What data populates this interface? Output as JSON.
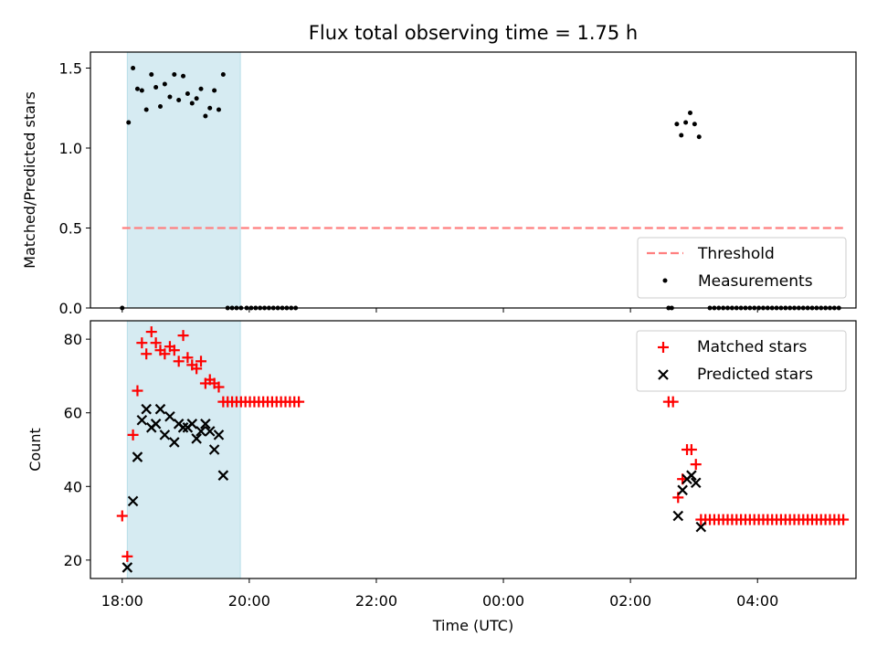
{
  "chart_data": [
    {
      "type": "scatter",
      "title": "Flux total observing time = 1.75 h",
      "xlabel": "",
      "ylabel": "Matched/Predicted stars",
      "xlim": [
        -0.5,
        11.55
      ],
      "ylim": [
        0,
        1.6
      ],
      "xticks": [
        0,
        2,
        4,
        6,
        8,
        10
      ],
      "yticks": [
        0.0,
        0.5,
        1.0,
        1.5
      ],
      "ytick_labels": [
        "0.0",
        "0.5",
        "1.0",
        "1.5"
      ],
      "shaded_interval": [
        0.08,
        1.86
      ],
      "threshold": {
        "name": "Threshold",
        "y": 0.5,
        "x": [
          0.0,
          11.35
        ],
        "color": "#ff7f7f"
      },
      "series": [
        {
          "name": "Measurements",
          "marker": "dot",
          "color": "#000000",
          "x": [
            0.0,
            0.1,
            0.17,
            0.24,
            0.31,
            0.38,
            0.46,
            0.53,
            0.6,
            0.67,
            0.75,
            0.82,
            0.89,
            0.96,
            1.03,
            1.1,
            1.17,
            1.24,
            1.31,
            1.38,
            1.45,
            1.52,
            1.59,
            1.66,
            1.73,
            1.8,
            1.87,
            1.96,
            2.03,
            2.1,
            2.17,
            2.24,
            2.31,
            2.38,
            2.45,
            2.52,
            2.59,
            2.66,
            2.73,
            8.6,
            8.65,
            8.73,
            8.8,
            8.87,
            8.94,
            9.01,
            9.08,
            9.25,
            9.32,
            9.39,
            9.46,
            9.53,
            9.6,
            9.67,
            9.74,
            9.81,
            9.88,
            9.95,
            10.02,
            10.09,
            10.16,
            10.23,
            10.3,
            10.37,
            10.44,
            10.51,
            10.58,
            10.65,
            10.72,
            10.79,
            10.86,
            10.93,
            11.0,
            11.07,
            11.14,
            11.21,
            11.28
          ],
          "y": [
            0.0,
            1.16,
            1.5,
            1.37,
            1.36,
            1.24,
            1.46,
            1.38,
            1.26,
            1.4,
            1.32,
            1.46,
            1.3,
            1.45,
            1.34,
            1.28,
            1.31,
            1.37,
            1.2,
            1.25,
            1.36,
            1.24,
            1.46,
            0.0,
            0.0,
            0.0,
            0.0,
            0.0,
            0.0,
            0.0,
            0.0,
            0.0,
            0.0,
            0.0,
            0.0,
            0.0,
            0.0,
            0.0,
            0.0,
            0.0,
            0.0,
            1.15,
            1.08,
            1.16,
            1.22,
            1.15,
            1.07,
            0.0,
            0.0,
            0.0,
            0.0,
            0.0,
            0.0,
            0.0,
            0.0,
            0.0,
            0.0,
            0.0,
            0.0,
            0.0,
            0.0,
            0.0,
            0.0,
            0.0,
            0.0,
            0.0,
            0.0,
            0.0,
            0.0,
            0.0,
            0.0,
            0.0,
            0.0,
            0.0,
            0.0,
            0.0,
            0.0
          ]
        }
      ],
      "legend": {
        "placement": "lower-right",
        "entries": [
          "Threshold",
          "Measurements"
        ]
      }
    },
    {
      "type": "scatter",
      "title": "",
      "xlabel": "Time (UTC)",
      "ylabel": "Count",
      "xlim": [
        -0.5,
        11.55
      ],
      "ylim": [
        15,
        85
      ],
      "xticks": [
        0,
        2,
        4,
        6,
        8,
        10
      ],
      "xtick_labels": [
        "18:00",
        "20:00",
        "22:00",
        "00:00",
        "02:00",
        "04:00"
      ],
      "yticks": [
        20,
        40,
        60,
        80
      ],
      "ytick_labels": [
        "20",
        "40",
        "60",
        "80"
      ],
      "shaded_interval": [
        0.08,
        1.86
      ],
      "series": [
        {
          "name": "Matched stars",
          "marker": "plus",
          "color": "#ff0000",
          "x": [
            0.0,
            0.08,
            0.17,
            0.24,
            0.31,
            0.38,
            0.46,
            0.53,
            0.6,
            0.67,
            0.75,
            0.82,
            0.89,
            0.96,
            1.03,
            1.1,
            1.17,
            1.24,
            1.31,
            1.38,
            1.45,
            1.52,
            1.59,
            1.66,
            1.73,
            1.8,
            1.87,
            1.94,
            2.01,
            2.08,
            2.15,
            2.22,
            2.29,
            2.36,
            2.43,
            2.5,
            2.57,
            2.64,
            2.71,
            2.78,
            8.6,
            8.67,
            8.75,
            8.82,
            8.89,
            8.96,
            9.03,
            9.11,
            9.18,
            9.25,
            9.32,
            9.39,
            9.46,
            9.53,
            9.6,
            9.67,
            9.74,
            9.81,
            9.88,
            9.95,
            10.02,
            10.09,
            10.16,
            10.23,
            10.3,
            10.37,
            10.44,
            10.51,
            10.58,
            10.65,
            10.72,
            10.79,
            10.86,
            10.93,
            11.0,
            11.07,
            11.14,
            11.21,
            11.28,
            11.35
          ],
          "y": [
            32,
            21,
            54,
            66,
            79,
            76,
            82,
            79,
            77,
            76,
            78,
            77,
            74,
            81,
            75,
            73,
            72,
            74,
            68,
            69,
            68,
            67,
            63,
            63,
            63,
            63,
            63,
            63,
            63,
            63,
            63,
            63,
            63,
            63,
            63,
            63,
            63,
            63,
            63,
            63,
            63,
            63,
            37,
            42,
            50,
            50,
            46,
            31,
            31,
            31,
            31,
            31,
            31,
            31,
            31,
            31,
            31,
            31,
            31,
            31,
            31,
            31,
            31,
            31,
            31,
            31,
            31,
            31,
            31,
            31,
            31,
            31,
            31,
            31,
            31,
            31,
            31,
            31,
            31,
            31
          ]
        },
        {
          "name": "Predicted stars",
          "marker": "x",
          "color": "#000000",
          "x": [
            0.08,
            0.17,
            0.24,
            0.31,
            0.38,
            0.46,
            0.53,
            0.6,
            0.67,
            0.75,
            0.82,
            0.89,
            0.96,
            1.03,
            1.1,
            1.17,
            1.24,
            1.31,
            1.38,
            1.45,
            1.52,
            1.59,
            8.75,
            8.82,
            8.89,
            8.96,
            9.03,
            9.11
          ],
          "y": [
            18,
            36,
            48,
            58,
            61,
            56,
            57,
            61,
            54,
            59,
            52,
            57,
            56,
            56,
            57,
            53,
            55,
            57,
            55,
            50,
            54,
            43,
            32,
            39,
            42,
            43,
            41,
            29
          ]
        }
      ],
      "legend": {
        "placement": "upper-right",
        "entries": [
          "Matched stars",
          "Predicted stars"
        ]
      }
    }
  ]
}
